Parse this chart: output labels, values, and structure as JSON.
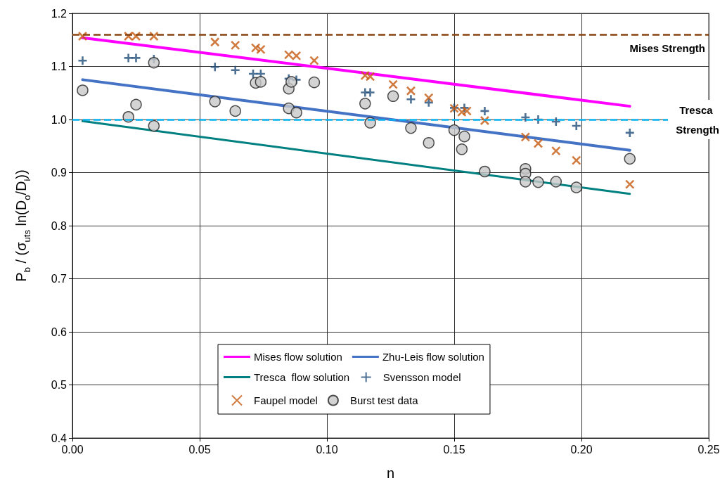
{
  "chart_data": {
    "type": "scatter",
    "xlabel": "n",
    "ylabel": "P$_{b}$ / (σ$_{uts}$ ln(D$_{o}$/D$_{i}$))",
    "xlim": [
      0,
      0.25
    ],
    "ylim": [
      0.4,
      1.2
    ],
    "xticks": [
      {
        "value": 0,
        "label": "0.00"
      },
      {
        "value": 0.05,
        "label": "0.05"
      },
      {
        "value": 0.1,
        "label": "0.10"
      },
      {
        "value": 0.15,
        "label": "0.15"
      },
      {
        "value": 0.2,
        "label": "0.20"
      },
      {
        "value": 0.25,
        "label": "0.25"
      }
    ],
    "yticks": [
      0.4,
      0.5,
      0.6,
      0.7,
      0.8,
      0.9,
      {
        "value": 1,
        "label": "1.0"
      },
      1.1,
      1.2
    ],
    "grid": true,
    "legend": "center",
    "ref_lines": [
      {
        "axis": "y",
        "value": 1.157,
        "label": "Mises Strength",
        "color": "#8b4513",
        "line_style": "dashed"
      },
      {
        "axis": "y",
        "value": 1.0,
        "label": "Tresca Strength",
        "color": "#00b0f0",
        "line_style": "dashed"
      }
    ],
    "series": [
      {
        "name": "Mises flow solution",
        "type": "line",
        "color": "#ff00ff",
        "marker": "none",
        "x": [
          0.004,
          0.219
        ],
        "values": [
          1.154,
          1.025
        ]
      },
      {
        "name": "Zhu-Leis flow solution",
        "type": "line",
        "color": "#4472c4",
        "marker": "none",
        "x": [
          0.004,
          0.219
        ],
        "values": [
          1.075,
          0.942
        ]
      },
      {
        "name": "Tresca  flow solution",
        "type": "line",
        "color": "#008080",
        "marker": "none",
        "x": [
          0.004,
          0.219
        ],
        "values": [
          0.997,
          0.86
        ]
      },
      {
        "name": "Svensson model",
        "color": "#1f4e79",
        "marker": "plus",
        "x": [
          0.004,
          0.022,
          0.025,
          0.032,
          0.056,
          0.064,
          0.071,
          0.074,
          0.085,
          0.088,
          0.115,
          0.117,
          0.133,
          0.14,
          0.15,
          0.154,
          0.162,
          0.178,
          0.183,
          0.19,
          0.198,
          0.219
        ],
        "values": [
          1.111,
          1.116,
          1.116,
          1.114,
          1.099,
          1.093,
          1.086,
          1.086,
          1.077,
          1.075,
          1.051,
          1.051,
          1.038,
          1.032,
          1.022,
          1.022,
          1.016,
          1.004,
          1.0,
          0.996,
          0.988,
          0.975
        ]
      },
      {
        "name": "Faupel model",
        "color": "#c55a11",
        "marker": "cross",
        "x": [
          0.004,
          0.022,
          0.025,
          0.032,
          0.056,
          0.064,
          0.072,
          0.074,
          0.085,
          0.088,
          0.095,
          0.115,
          0.117,
          0.126,
          0.133,
          0.14,
          0.15,
          0.153,
          0.155,
          0.162,
          0.178,
          0.183,
          0.19,
          0.198,
          0.219
        ],
        "values": [
          1.157,
          1.157,
          1.157,
          1.157,
          1.146,
          1.14,
          1.135,
          1.132,
          1.122,
          1.12,
          1.111,
          1.083,
          1.081,
          1.066,
          1.054,
          1.041,
          1.021,
          1.014,
          1.016,
          0.998,
          0.967,
          0.955,
          0.941,
          0.923,
          0.878
        ]
      },
      {
        "name": "Burst test data",
        "color": "#c8c8c8",
        "marker": "circle",
        "x": [
          0.004,
          0.022,
          0.025,
          0.032,
          0.032,
          0.056,
          0.064,
          0.072,
          0.074,
          0.085,
          0.085,
          0.086,
          0.088,
          0.095,
          0.115,
          0.117,
          0.126,
          0.133,
          0.14,
          0.15,
          0.154,
          0.153,
          0.162,
          0.178,
          0.178,
          0.178,
          0.183,
          0.19,
          0.198,
          0.219
        ],
        "values": [
          1.055,
          1.005,
          1.028,
          1.107,
          0.988,
          1.034,
          1.016,
          1.069,
          1.071,
          1.058,
          1.021,
          1.071,
          1.013,
          1.07,
          1.03,
          0.994,
          1.044,
          0.984,
          0.956,
          0.98,
          0.968,
          0.944,
          0.902,
          0.907,
          0.898,
          0.883,
          0.882,
          0.883,
          0.872,
          0.926
        ]
      }
    ]
  }
}
